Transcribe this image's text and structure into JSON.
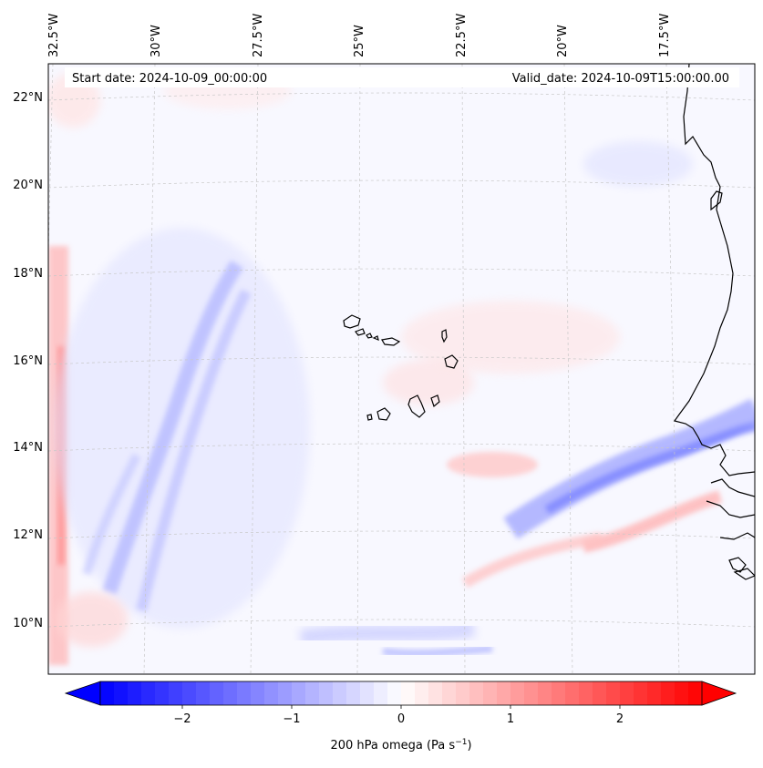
{
  "map": {
    "start_label": "Start date: 2024-10-09_00:00:00",
    "valid_label": "Valid_date: 2024-10-09T15:00:00.00",
    "variable": "200 hPa omega",
    "units": "Pa s",
    "units_exponent": "−1",
    "longitude_labels": [
      "32.5°W",
      "30°W",
      "27.5°W",
      "25°W",
      "22.5°W",
      "20°W",
      "17.5°W"
    ],
    "latitude_labels": [
      "22°N",
      "20°N",
      "18°N",
      "16°N",
      "14°N",
      "12°N",
      "10°N"
    ],
    "colorbar": {
      "min": -2.75,
      "max": 2.75,
      "ticks": [
        -2,
        -1,
        0,
        1,
        2
      ],
      "tick_labels": [
        "−2",
        "−1",
        "0",
        "1",
        "2"
      ],
      "extend": "both",
      "colormap": "bwr",
      "low_color": "#0000ff",
      "mid_color": "#ffffff",
      "high_color": "#ff0000"
    },
    "field_summary": {
      "background_color": "#f9f9ff",
      "coastline_color": "#000000",
      "gridline_color": "#c8c8c8"
    }
  }
}
